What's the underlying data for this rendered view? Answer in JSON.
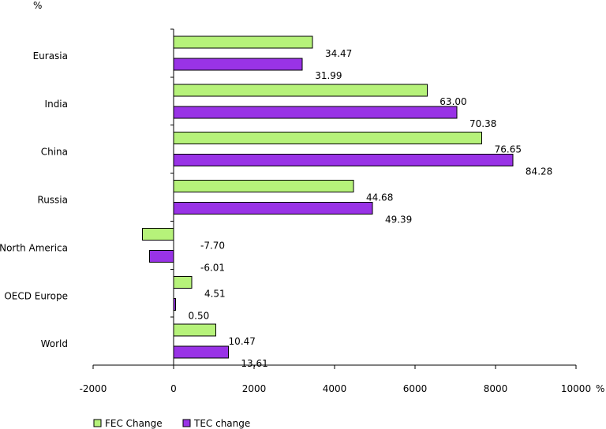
{
  "chart_data": {
    "type": "bar",
    "orientation": "horizontal",
    "y_unit_label": "%",
    "x_unit_label": "%",
    "xlim": [
      -2000,
      10000
    ],
    "xticks": [
      -2000,
      0,
      2000,
      4000,
      6000,
      8000,
      10000
    ],
    "categories": [
      "Eurasia",
      "India",
      "China",
      "Russia",
      "North America",
      "OECD Europe",
      "World"
    ],
    "series": [
      {
        "name": "FEC Change",
        "color": "#b6f27a",
        "values": [
          3450,
          6300,
          7660,
          4470,
          -770,
          450,
          1050
        ],
        "labels": [
          "34.47",
          "63.00",
          "76.65",
          "44.68",
          "-7.70",
          "4.51",
          "10.47"
        ]
      },
      {
        "name": "TEC change",
        "color": "#9933e6",
        "values": [
          3200,
          7040,
          8430,
          4940,
          -600,
          50,
          1360
        ],
        "labels": [
          "31.99",
          "70.38",
          "84.28",
          "49.39",
          "-6.01",
          "0.50",
          "13.61"
        ]
      }
    ],
    "legend_position": "bottom-left",
    "grid": false
  }
}
